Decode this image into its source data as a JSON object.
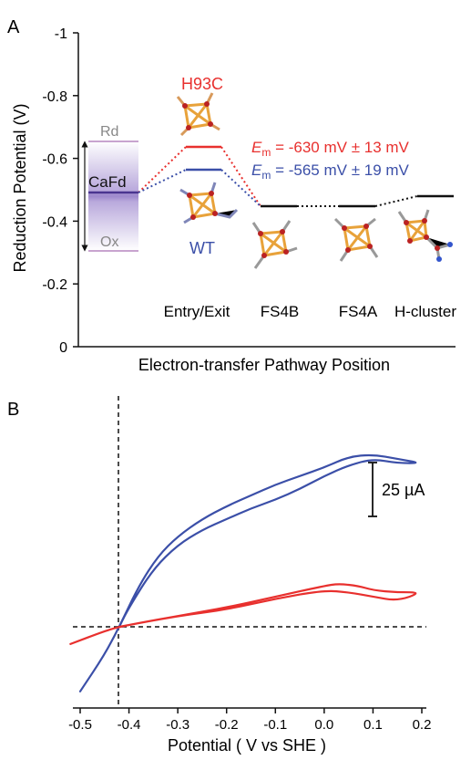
{
  "panel_a": {
    "label": "A",
    "ylabel": "Reduction Potential (V)",
    "xlabel": "Electron-transfer Pathway Position",
    "ticks": [
      "-1",
      "-0.8",
      "-0.6",
      "-0.4",
      "-0.2",
      "0"
    ],
    "cafd_label": "CaFd",
    "rd_label": "Rd",
    "ox_label": "Ox",
    "h93c_label": "H93C",
    "wt_label": "WT",
    "em_red_prefix": "E",
    "em_red_sub": "m",
    "em_red_value": " = -630 mV ± 13 mV",
    "em_blue_prefix": "E",
    "em_blue_sub": "m",
    "em_blue_value": " = -565 mV ± 19 mV",
    "positions": [
      "Entry/Exit",
      "FS4B",
      "FS4A",
      "H-cluster"
    ],
    "colors": {
      "red": "#e8302e",
      "blue": "#3b4fa8",
      "purple": "#5a3f98"
    }
  },
  "panel_b": {
    "label": "B",
    "xlabel": "Potential ( V vs SHE )",
    "xticks": [
      "-0.5",
      "-0.4",
      "-0.3",
      "-0.2",
      "-0.1",
      "0.0",
      "0.1",
      "0.2"
    ],
    "scale_label": "25 µA"
  },
  "chart_data": [
    {
      "type": "line",
      "title": "",
      "ylabel": "Reduction Potential (V)",
      "xlabel": "Electron-transfer Pathway Position",
      "categories": [
        "Entry/Exit",
        "FS4B",
        "FS4A",
        "H-cluster"
      ],
      "ylim": [
        0,
        -1
      ],
      "series": [
        {
          "name": "H93C",
          "values": [
            -0.63,
            -0.45,
            -0.45,
            -0.48
          ]
        },
        {
          "name": "WT",
          "values": [
            -0.565,
            -0.45,
            -0.45,
            -0.48
          ]
        }
      ],
      "cafd": {
        "Rd": -0.62,
        "CaFd": -0.49,
        "Ox": -0.31
      }
    },
    {
      "type": "line",
      "title": "",
      "xlabel": "Potential ( V vs SHE )",
      "xlim": [
        -0.52,
        0.2
      ],
      "reference_potential": -0.42,
      "scale_bar_uA": 25,
      "series": [
        {
          "name": "",
          "color": "#3b4fa8",
          "x": [
            -0.5,
            -0.45,
            -0.42,
            -0.38,
            -0.34,
            -0.3,
            -0.25,
            -0.2,
            -0.15,
            -0.1,
            -0.05,
            0.0,
            0.05,
            0.1,
            0.15,
            0.2,
            0.15,
            0.1,
            0.05,
            0.0,
            -0.05,
            -0.1,
            -0.15,
            -0.2,
            -0.25,
            -0.3,
            -0.35,
            -0.4,
            -0.42
          ],
          "y": [
            -30,
            -13,
            0,
            19,
            33,
            42,
            50,
            56,
            61,
            66,
            70,
            74,
            79,
            80,
            78,
            76,
            76,
            78,
            75,
            70,
            64,
            59,
            55,
            50,
            45,
            38,
            27,
            9,
            0
          ]
        },
        {
          "name": "",
          "color": "#e8302e",
          "x": [
            -0.52,
            -0.45,
            -0.42,
            -0.35,
            -0.3,
            -0.2,
            -0.1,
            0.0,
            0.03,
            0.07,
            0.1,
            0.15,
            0.2,
            0.15,
            0.1,
            0.05,
            0.0,
            -0.1,
            -0.2,
            -0.3,
            -0.42
          ],
          "y": [
            -8,
            -2,
            0,
            3,
            5,
            9,
            14,
            19,
            20,
            19,
            17,
            16,
            16,
            12,
            14,
            16,
            17,
            13,
            8,
            5,
            0
          ]
        }
      ]
    }
  ]
}
